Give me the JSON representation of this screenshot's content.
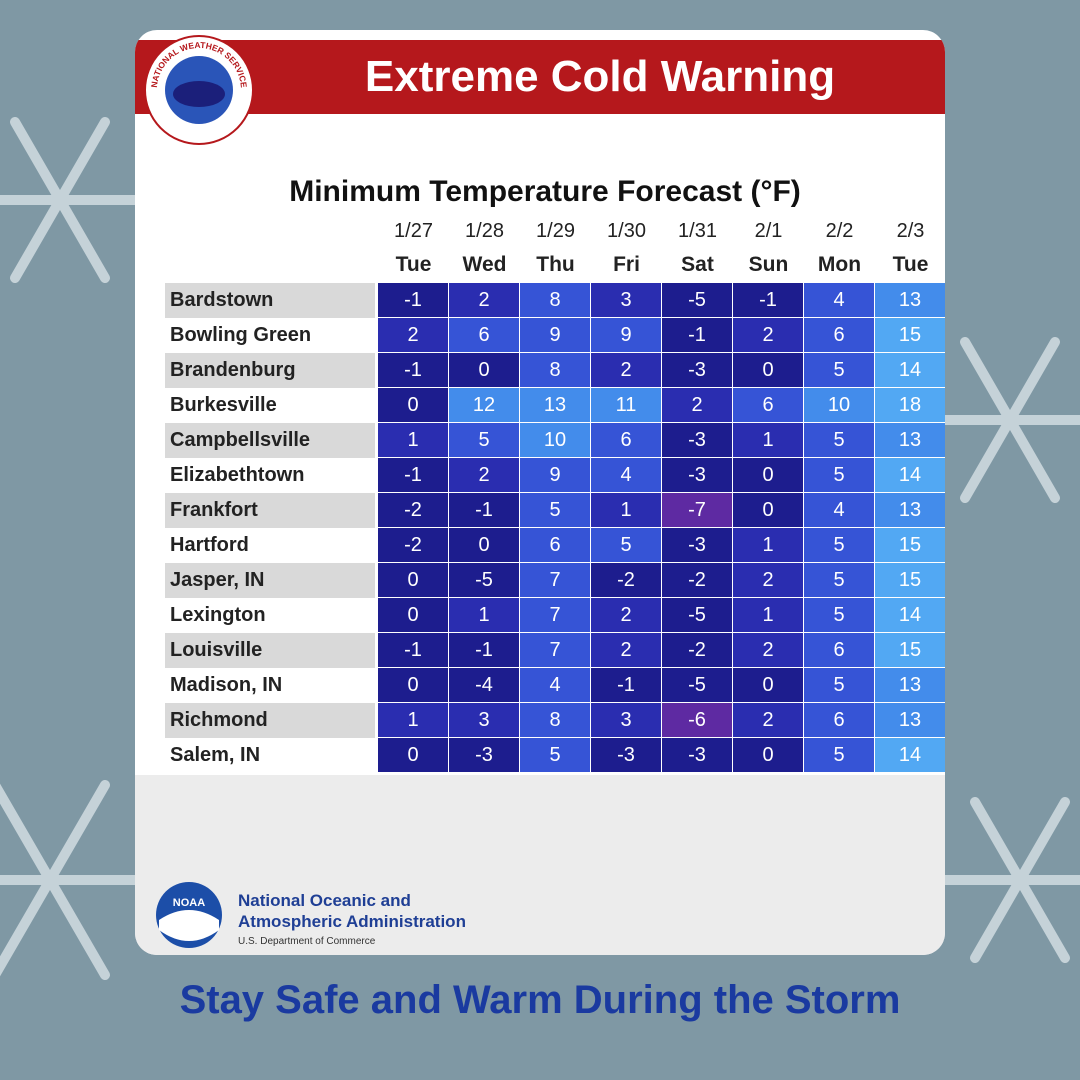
{
  "header": {
    "title": "Extreme Cold Warning",
    "logo_text": "NATIONAL WEATHER SERVICE"
  },
  "table": {
    "title": "Minimum Temperature Forecast (°F)",
    "dates": [
      "1/27",
      "1/28",
      "1/29",
      "1/30",
      "1/31",
      "2/1",
      "2/2",
      "2/3"
    ],
    "days": [
      "Tue",
      "Wed",
      "Thu",
      "Fri",
      "Sat",
      "Sun",
      "Mon",
      "Tue"
    ],
    "rows": [
      {
        "city": "Bardstown",
        "values": [
          -1,
          2,
          8,
          3,
          -5,
          -1,
          4,
          13
        ]
      },
      {
        "city": "Bowling Green",
        "values": [
          2,
          6,
          9,
          9,
          -1,
          2,
          6,
          15
        ]
      },
      {
        "city": "Brandenburg",
        "values": [
          -1,
          0,
          8,
          2,
          -3,
          0,
          5,
          14
        ]
      },
      {
        "city": "Burkesville",
        "values": [
          0,
          12,
          13,
          11,
          2,
          6,
          10,
          18
        ]
      },
      {
        "city": "Campbellsville",
        "values": [
          1,
          5,
          10,
          6,
          -3,
          1,
          5,
          13
        ]
      },
      {
        "city": "Elizabethtown",
        "values": [
          -1,
          2,
          9,
          4,
          -3,
          0,
          5,
          14
        ]
      },
      {
        "city": "Frankfort",
        "values": [
          -2,
          -1,
          5,
          1,
          -7,
          0,
          4,
          13
        ]
      },
      {
        "city": "Hartford",
        "values": [
          -2,
          0,
          6,
          5,
          -3,
          1,
          5,
          15
        ]
      },
      {
        "city": "Jasper, IN",
        "values": [
          0,
          -5,
          7,
          -2,
          -2,
          2,
          5,
          15
        ]
      },
      {
        "city": "Lexington",
        "values": [
          0,
          1,
          7,
          2,
          -5,
          1,
          5,
          14
        ]
      },
      {
        "city": "Louisville",
        "values": [
          -1,
          -1,
          7,
          2,
          -2,
          2,
          6,
          15
        ]
      },
      {
        "city": "Madison, IN",
        "values": [
          0,
          -4,
          4,
          -1,
          -5,
          0,
          5,
          13
        ]
      },
      {
        "city": "Richmond",
        "values": [
          1,
          3,
          8,
          3,
          -6,
          2,
          6,
          13
        ]
      },
      {
        "city": "Salem, IN",
        "values": [
          0,
          -3,
          5,
          -3,
          -3,
          0,
          5,
          14
        ]
      }
    ]
  },
  "footer": {
    "logo_text": "NOAA",
    "org_line1": "National Oceanic and",
    "org_line2": "Atmospheric Administration",
    "dept": "U.S. Department of Commerce"
  },
  "tagline": "Stay Safe and Warm During the Storm"
}
